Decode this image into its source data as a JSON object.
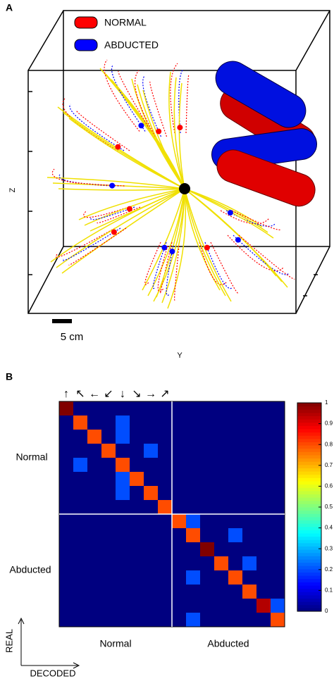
{
  "chart_data": [
    {
      "type": "trajectory3d",
      "panel_label": "A",
      "series": [
        {
          "name": "NORMAL",
          "color": "#ff0000"
        },
        {
          "name": "ABDUCTED",
          "color": "#0000ff"
        }
      ],
      "xlabel": "Y",
      "zlabel": "Z",
      "scale_bar": "5 cm"
    },
    {
      "type": "heatmap",
      "panel_label": "B",
      "colormap": "jet",
      "direction_labels": [
        "↑",
        "↖",
        "←",
        "↙",
        "↓",
        "↘",
        "→",
        "↗"
      ],
      "row_groups": [
        "Normal",
        "Abducted"
      ],
      "col_groups": [
        "Normal",
        "Abducted"
      ],
      "ylabel": "REAL",
      "xlabel": "DECODED",
      "zlim": [
        0,
        1
      ],
      "zticks": [
        0,
        0.1,
        0.2,
        0.3,
        0.4,
        0.5,
        0.6,
        0.7,
        0.8,
        0.9,
        1
      ],
      "values": [
        [
          1,
          0,
          0,
          0,
          0,
          0,
          0,
          0,
          0,
          0,
          0,
          0,
          0,
          0,
          0,
          0
        ],
        [
          0,
          0.8,
          0,
          0,
          0.2,
          0,
          0,
          0,
          0,
          0,
          0,
          0,
          0,
          0,
          0,
          0
        ],
        [
          0,
          0,
          0.8,
          0,
          0.2,
          0,
          0,
          0,
          0,
          0,
          0,
          0,
          0,
          0,
          0,
          0
        ],
        [
          0,
          0,
          0,
          0.8,
          0,
          0,
          0.2,
          0,
          0,
          0,
          0,
          0,
          0,
          0,
          0,
          0
        ],
        [
          0,
          0.2,
          0,
          0,
          0.8,
          0,
          0,
          0,
          0,
          0,
          0,
          0,
          0,
          0,
          0,
          0
        ],
        [
          0,
          0,
          0,
          0,
          0.2,
          0.8,
          0,
          0,
          0,
          0,
          0,
          0,
          0,
          0,
          0,
          0
        ],
        [
          0,
          0,
          0,
          0,
          0.2,
          0,
          0.8,
          0,
          0,
          0,
          0,
          0,
          0,
          0,
          0,
          0
        ],
        [
          0,
          0,
          0,
          0,
          0,
          0,
          0,
          0.8,
          0,
          0,
          0,
          0,
          0,
          0,
          0,
          0
        ],
        [
          0,
          0,
          0,
          0,
          0,
          0,
          0,
          0,
          0.8,
          0.2,
          0,
          0,
          0,
          0,
          0,
          0
        ],
        [
          0,
          0,
          0,
          0,
          0,
          0,
          0,
          0,
          0,
          0.8,
          0,
          0,
          0.2,
          0,
          0,
          0
        ],
        [
          0,
          0,
          0,
          0,
          0,
          0,
          0,
          0,
          0,
          0,
          1,
          0,
          0,
          0,
          0,
          0
        ],
        [
          0,
          0,
          0,
          0,
          0,
          0,
          0,
          0,
          0,
          0,
          0,
          0.8,
          0,
          0.2,
          0,
          0
        ],
        [
          0,
          0,
          0,
          0,
          0,
          0,
          0,
          0,
          0,
          0.2,
          0,
          0,
          0.8,
          0,
          0,
          0
        ],
        [
          0,
          0,
          0,
          0,
          0,
          0,
          0,
          0,
          0,
          0,
          0,
          0,
          0,
          0.8,
          0,
          0
        ],
        [
          0,
          0,
          0,
          0,
          0,
          0,
          0,
          0,
          0,
          0,
          0,
          0,
          0,
          0,
          0.95,
          0.2
        ],
        [
          0,
          0,
          0,
          0,
          0,
          0,
          0,
          0,
          0,
          0.2,
          0,
          0,
          0,
          0,
          0,
          0.8
        ]
      ]
    }
  ]
}
